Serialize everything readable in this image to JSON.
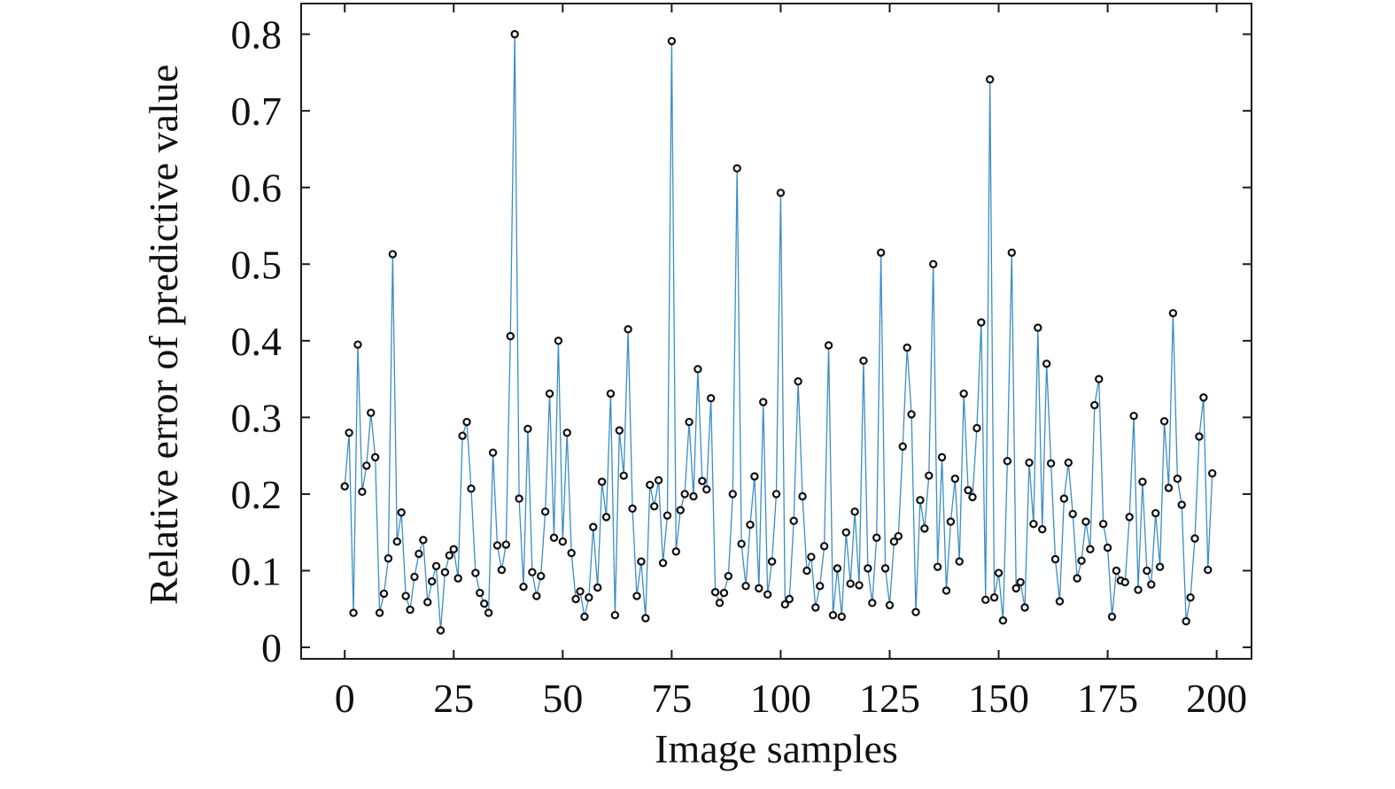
{
  "chart_data": {
    "type": "line",
    "title": "",
    "xlabel": "Image samples",
    "ylabel": "Relative error of predictive value",
    "xlim": [
      -10,
      208
    ],
    "ylim": [
      -0.015,
      0.84
    ],
    "xticks": [
      0,
      25,
      50,
      75,
      100,
      125,
      150,
      175,
      200
    ],
    "xtick_labels": [
      "0",
      "25",
      "50",
      "75",
      "100",
      "125",
      "150",
      "175",
      "200"
    ],
    "yticks": [
      0,
      0.1,
      0.2,
      0.3,
      0.4,
      0.5,
      0.6,
      0.7,
      0.8
    ],
    "ytick_labels": [
      "0",
      "0.1",
      "0.2",
      "0.3",
      "0.4",
      "0.5",
      "0.6",
      "0.7",
      "0.8"
    ],
    "grid": false,
    "legend": "none",
    "colors": {
      "line": "#3b8ec4",
      "marker": "#111111",
      "axes": "#1a1a1a"
    },
    "series": [
      {
        "marker": "open-circle",
        "x": [
          0,
          1,
          2,
          3,
          4,
          5,
          6,
          7,
          8,
          9,
          10,
          11,
          12,
          13,
          14,
          15,
          16,
          17,
          18,
          19,
          20,
          21,
          22,
          23,
          24,
          25,
          26,
          27,
          28,
          29,
          30,
          31,
          32,
          33,
          34,
          35,
          36,
          37,
          38,
          39,
          40,
          41,
          42,
          43,
          44,
          45,
          46,
          47,
          48,
          49,
          50,
          51,
          52,
          53,
          54,
          55,
          56,
          57,
          58,
          59,
          60,
          61,
          62,
          63,
          64,
          65,
          66,
          67,
          68,
          69,
          70,
          71,
          72,
          73,
          74,
          75,
          76,
          77,
          78,
          79,
          80,
          81,
          82,
          83,
          84,
          85,
          86,
          87,
          88,
          89,
          90,
          91,
          92,
          93,
          94,
          95,
          96,
          97,
          98,
          99,
          100,
          101,
          102,
          103,
          104,
          105,
          106,
          107,
          108,
          109,
          110,
          111,
          112,
          113,
          114,
          115,
          116,
          117,
          118,
          119,
          120,
          121,
          122,
          123,
          124,
          125,
          126,
          127,
          128,
          129,
          130,
          131,
          132,
          133,
          134,
          135,
          136,
          137,
          138,
          139,
          140,
          141,
          142,
          143,
          144,
          145,
          146,
          147,
          148,
          149,
          150,
          151,
          152,
          153,
          154,
          155,
          156,
          157,
          158,
          159,
          160,
          161,
          162,
          163,
          164,
          165,
          166,
          167,
          168,
          169,
          170,
          171,
          172,
          173,
          174,
          175,
          176,
          177,
          178,
          179,
          180,
          181,
          182,
          183,
          184,
          185,
          186,
          187,
          188,
          189,
          190,
          191,
          192,
          193,
          194,
          195,
          196,
          197,
          198,
          199
        ],
        "values": [
          0.21,
          0.28,
          0.045,
          0.395,
          0.203,
          0.237,
          0.306,
          0.248,
          0.045,
          0.07,
          0.116,
          0.513,
          0.138,
          0.176,
          0.067,
          0.049,
          0.092,
          0.122,
          0.14,
          0.059,
          0.086,
          0.106,
          0.022,
          0.098,
          0.12,
          0.128,
          0.09,
          0.276,
          0.294,
          0.207,
          0.097,
          0.071,
          0.057,
          0.045,
          0.254,
          0.133,
          0.101,
          0.134,
          0.406,
          0.8,
          0.194,
          0.079,
          0.285,
          0.098,
          0.067,
          0.093,
          0.177,
          0.331,
          0.143,
          0.4,
          0.138,
          0.28,
          0.123,
          0.063,
          0.073,
          0.04,
          0.065,
          0.157,
          0.078,
          0.216,
          0.17,
          0.331,
          0.042,
          0.283,
          0.224,
          0.415,
          0.181,
          0.067,
          0.112,
          0.038,
          0.212,
          0.184,
          0.218,
          0.11,
          0.172,
          0.791,
          0.125,
          0.179,
          0.2,
          0.294,
          0.197,
          0.363,
          0.217,
          0.206,
          0.325,
          0.072,
          0.058,
          0.071,
          0.093,
          0.2,
          0.625,
          0.135,
          0.08,
          0.16,
          0.223,
          0.077,
          0.32,
          0.069,
          0.112,
          0.2,
          0.593,
          0.056,
          0.063,
          0.165,
          0.347,
          0.197,
          0.1,
          0.118,
          0.052,
          0.08,
          0.132,
          0.394,
          0.042,
          0.103,
          0.04,
          0.15,
          0.083,
          0.177,
          0.081,
          0.374,
          0.103,
          0.058,
          0.143,
          0.515,
          0.103,
          0.055,
          0.138,
          0.145,
          0.262,
          0.391,
          0.304,
          0.046,
          0.192,
          0.155,
          0.224,
          0.5,
          0.105,
          0.248,
          0.074,
          0.164,
          0.22,
          0.112,
          0.331,
          0.205,
          0.196,
          0.286,
          0.424,
          0.062,
          0.741,
          0.065,
          0.097,
          0.035,
          0.243,
          0.515,
          0.077,
          0.085,
          0.052,
          0.241,
          0.161,
          0.417,
          0.154,
          0.37,
          0.24,
          0.115,
          0.06,
          0.194,
          0.241,
          0.174,
          0.09,
          0.113,
          0.164,
          0.128,
          0.316,
          0.35,
          0.161,
          0.13,
          0.04,
          0.1,
          0.087,
          0.085,
          0.17,
          0.302,
          0.075,
          0.216,
          0.1,
          0.082,
          0.175,
          0.105,
          0.295,
          0.208,
          0.436,
          0.22,
          0.186,
          0.034,
          0.065,
          0.142,
          0.275,
          0.326,
          0.101,
          0.227
        ]
      }
    ]
  }
}
